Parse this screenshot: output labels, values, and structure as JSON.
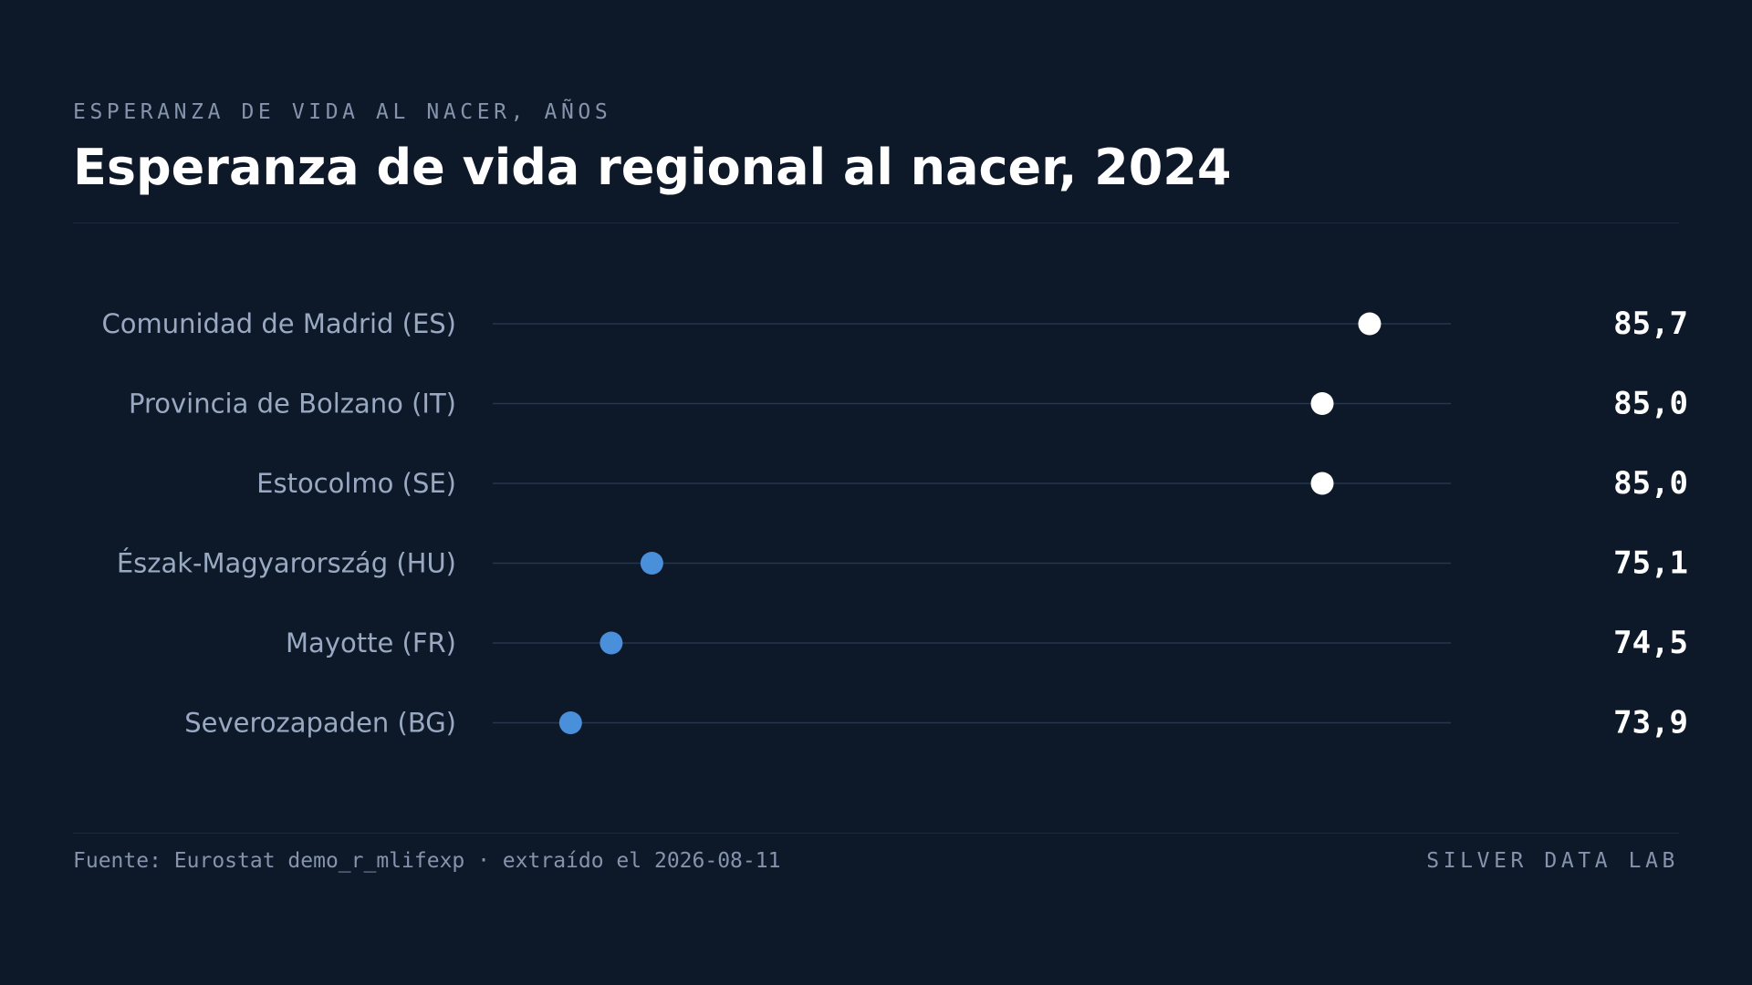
{
  "header": {
    "kicker": "ESPERANZA DE VIDA AL NACER, AÑOS",
    "title": "Esperanza de vida regional al nacer, 2024"
  },
  "footer": {
    "source": "Fuente: Eurostat demo_r_mlifexp · extraído el 2026-08-11",
    "brand": "SILVER DATA LAB"
  },
  "colors": {
    "background": "#0d1929",
    "high_dot": "#ffffff",
    "low_dot": "#4a8fd9",
    "track": "#26364d",
    "label": "#9aa9c2",
    "value": "#ffffff"
  },
  "chart_data": {
    "type": "dot",
    "title": "Esperanza de vida regional al nacer, 2024",
    "categories": [
      "Comunidad de Madrid (ES)",
      "Provincia de Bolzano (IT)",
      "Estocolmo (SE)",
      "Észak-Magyarország (HU)",
      "Mayotte (FR)",
      "Severozapaden (BG)"
    ],
    "values": [
      85.7,
      85.0,
      85.0,
      75.1,
      74.5,
      73.9
    ],
    "value_labels": [
      "85,7",
      "85,0",
      "85,0",
      "75,1",
      "74,5",
      "73,9"
    ],
    "groups": [
      "high",
      "high",
      "high",
      "low",
      "low",
      "low"
    ],
    "xlim": [
      72.75,
      86.9
    ],
    "grid": false,
    "legend": "none"
  }
}
